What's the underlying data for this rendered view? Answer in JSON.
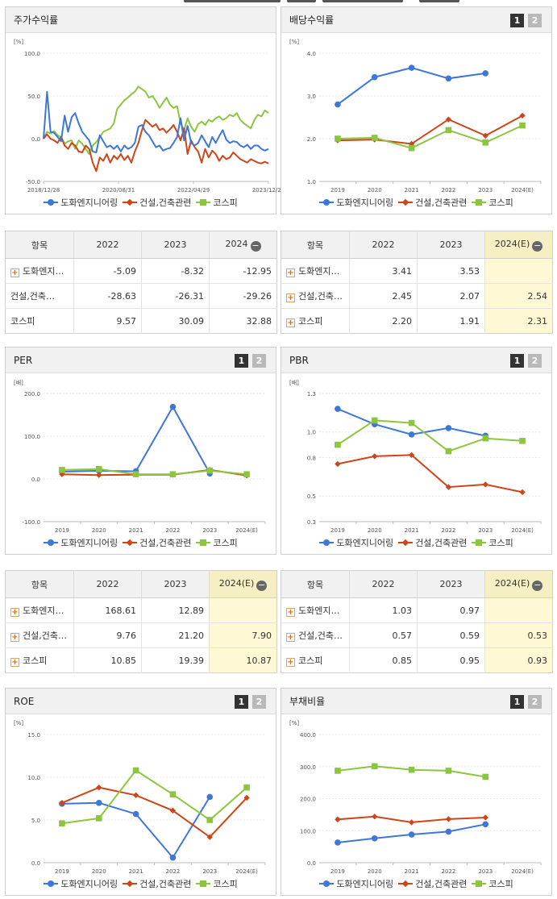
{
  "colors": {
    "blue": "#3d77d9",
    "orange": "#cf4518",
    "green": "#8cc63e"
  },
  "legend": [
    "도화엔지니어링",
    "건설,건축관련",
    "코스피"
  ],
  "buttons": {
    "one": "1",
    "two": "2"
  },
  "panels": [
    {
      "id": "stock",
      "title": "주가수익률",
      "unit": "[%]",
      "chart_data": {
        "type": "line",
        "title": "주가수익률",
        "ylim": [
          -50,
          100
        ],
        "yticks": [
          "100.0",
          "50.0",
          "0.0",
          "-50.0"
        ],
        "xticks": [
          "2018/12/28",
          "2020/08/31",
          "2022/04/29",
          "2023/12/28"
        ],
        "series": [
          {
            "name": "도화엔지니어링",
            "values": [
              0,
              55,
              8,
              7,
              2,
              -3,
              27,
              8,
              25,
              30,
              18,
              8,
              3,
              -2,
              -15,
              -16,
              4,
              -3,
              -10,
              -8,
              -12,
              -8,
              -15,
              -8,
              -12,
              -10,
              -5,
              14,
              16,
              8,
              4,
              -3,
              -10,
              -8,
              -14,
              -12,
              -11,
              -5,
              2,
              24,
              -2,
              15,
              -5,
              -8,
              -5,
              4,
              -3,
              -10,
              2,
              -5,
              3,
              10,
              -1,
              -5,
              -3,
              -4,
              -8,
              -10,
              -7,
              -12,
              -8,
              -8,
              -12,
              -14,
              -12
            ]
          },
          {
            "name": "건설,건축관련",
            "values": [
              0,
              5,
              0,
              -2,
              -5,
              2,
              -8,
              -12,
              -5,
              -8,
              -15,
              -16,
              -8,
              -12,
              -28,
              -38,
              -22,
              -26,
              -18,
              -28,
              -20,
              -24,
              -18,
              -25,
              -20,
              -28,
              -15,
              -5,
              10,
              22,
              18,
              14,
              17,
              10,
              12,
              7,
              11,
              16,
              8,
              -2,
              12,
              -18,
              -2,
              -10,
              -15,
              -28,
              -12,
              -22,
              -14,
              -18,
              -26,
              -20,
              -24,
              -22,
              -16,
              -20,
              -24,
              -26,
              -28,
              -24,
              -26,
              -28,
              -29,
              -27,
              -29
            ]
          },
          {
            "name": "코스피",
            "values": [
              0,
              8,
              6,
              9,
              4,
              2,
              -6,
              -3,
              -2,
              -12,
              -2,
              -6,
              -12,
              -18,
              -8,
              -4,
              2,
              8,
              10,
              12,
              18,
              35,
              40,
              45,
              48,
              52,
              55,
              61,
              58,
              55,
              48,
              50,
              44,
              36,
              42,
              48,
              40,
              36,
              38,
              18,
              10,
              24,
              14,
              8,
              17,
              20,
              16,
              22,
              20,
              24,
              26,
              22,
              24,
              28,
              26,
              30,
              22,
              18,
              15,
              12,
              22,
              28,
              26,
              33,
              30
            ]
          }
        ]
      }
    },
    {
      "id": "dividend",
      "title": "배당수익률",
      "unit": "[%]",
      "chart_data": {
        "type": "line",
        "title": "배당수익률",
        "ylim": [
          1.0,
          4.0
        ],
        "yticks": [
          "4.0",
          "3.0",
          "2.0",
          "1.0"
        ],
        "categories": [
          "2019",
          "2020",
          "2021",
          "2022",
          "2023",
          "2024(E)"
        ],
        "series": [
          {
            "name": "도화엔지니어링",
            "values": [
              2.8,
              3.44,
              3.66,
              3.41,
              3.53,
              null
            ]
          },
          {
            "name": "건설,건축관련",
            "values": [
              1.96,
              1.98,
              1.88,
              2.45,
              2.07,
              2.54
            ]
          },
          {
            "name": "코스피",
            "values": [
              2.0,
              2.02,
              1.78,
              2.2,
              1.91,
              2.31
            ]
          }
        ]
      }
    },
    {
      "id": "per",
      "title": "PER",
      "unit": "[배]",
      "chart_data": {
        "type": "line",
        "title": "PER",
        "ylim": [
          -100,
          200
        ],
        "yticks": [
          "200.0",
          "100.0",
          "0.0",
          "-100.0"
        ],
        "categories": [
          "2019",
          "2020",
          "2021",
          "2022",
          "2023",
          "2024(E)"
        ],
        "series": [
          {
            "name": "도화엔지니어링",
            "values": [
              17,
              19,
              18,
              168.61,
              12.89,
              null
            ]
          },
          {
            "name": "건설,건축관련",
            "values": [
              11,
              9,
              10,
              9.76,
              21.2,
              7.9
            ]
          },
          {
            "name": "코스피",
            "values": [
              21,
              23,
              11,
              10.85,
              19.39,
              10.87
            ]
          }
        ]
      }
    },
    {
      "id": "pbr",
      "title": "PBR",
      "unit": "[배]",
      "chart_data": {
        "type": "line",
        "title": "PBR",
        "ylim": [
          0.3,
          1.3
        ],
        "yticks": [
          "1.3",
          "1.0",
          "0.8",
          "0.5",
          "0.3"
        ],
        "categories": [
          "2019",
          "2020",
          "2021",
          "2022",
          "2023",
          "2024(E)"
        ],
        "series": [
          {
            "name": "도화엔지니어링",
            "values": [
              1.18,
              1.06,
              0.98,
              1.03,
              0.97,
              null
            ]
          },
          {
            "name": "건설,건축관련",
            "values": [
              0.75,
              0.81,
              0.82,
              0.57,
              0.59,
              0.53
            ]
          },
          {
            "name": "코스피",
            "values": [
              0.9,
              1.09,
              1.07,
              0.85,
              0.95,
              0.93
            ]
          }
        ]
      }
    },
    {
      "id": "roe",
      "title": "ROE",
      "unit": "[%]",
      "chart_data": {
        "type": "line",
        "title": "ROE",
        "ylim": [
          0,
          15
        ],
        "yticks": [
          "15.0",
          "10.0",
          "5.0",
          "0.0"
        ],
        "categories": [
          "2019",
          "2020",
          "2021",
          "2022",
          "2023",
          "2024(E)"
        ],
        "series": [
          {
            "name": "도화엔지니어링",
            "values": [
              6.9,
              7.0,
              5.7,
              0.6,
              7.7,
              null
            ]
          },
          {
            "name": "건설,건축관련",
            "values": [
              7.0,
              8.8,
              7.9,
              6.1,
              3.0,
              7.6
            ]
          },
          {
            "name": "코스피",
            "values": [
              4.6,
              5.2,
              10.8,
              8.0,
              5.0,
              8.8
            ]
          }
        ]
      }
    },
    {
      "id": "debt",
      "title": "부채비율",
      "unit": "[%]",
      "chart_data": {
        "type": "line",
        "title": "부채비율",
        "ylim": [
          0,
          400
        ],
        "yticks": [
          "400.0",
          "300.0",
          "200.0",
          "100.0",
          "0.0"
        ],
        "categories": [
          "2019",
          "2020",
          "2021",
          "2022",
          "2023",
          "2024(E)"
        ],
        "series": [
          {
            "name": "도화엔지니어링",
            "values": [
              63,
              76,
              88,
              97,
              120,
              null
            ]
          },
          {
            "name": "건설,건축관련",
            "values": [
              135,
              144,
              126,
              136,
              141,
              null
            ]
          },
          {
            "name": "코스피",
            "values": [
              287,
              301,
              290,
              287,
              268,
              null
            ]
          }
        ]
      }
    }
  ],
  "tables": [
    {
      "id": "stock",
      "headers": [
        "항목",
        "2022",
        "2023",
        "2024"
      ],
      "highlight_last": false,
      "rows": [
        {
          "name": "도화엔지니어링",
          "plus": true,
          "values": [
            "-5.09",
            "-8.32",
            "-12.95"
          ]
        },
        {
          "name": "건설,건축관련",
          "plus": false,
          "values": [
            "-28.63",
            "-26.31",
            "-29.26"
          ]
        },
        {
          "name": "코스피",
          "plus": false,
          "values": [
            "9.57",
            "30.09",
            "32.88"
          ]
        }
      ]
    },
    {
      "id": "dividend",
      "headers": [
        "항목",
        "2022",
        "2023",
        "2024(E)"
      ],
      "highlight_last": true,
      "rows": [
        {
          "name": "도화엔지니어링",
          "plus": true,
          "values": [
            "3.41",
            "3.53",
            ""
          ]
        },
        {
          "name": "건설,건축관련",
          "plus": true,
          "values": [
            "2.45",
            "2.07",
            "2.54"
          ]
        },
        {
          "name": "코스피",
          "plus": true,
          "values": [
            "2.20",
            "1.91",
            "2.31"
          ]
        }
      ]
    },
    {
      "id": "per",
      "headers": [
        "항목",
        "2022",
        "2023",
        "2024(E)"
      ],
      "highlight_last": true,
      "rows": [
        {
          "name": "도화엔지니어링",
          "plus": true,
          "values": [
            "168.61",
            "12.89",
            ""
          ]
        },
        {
          "name": "건설,건축관련",
          "plus": true,
          "values": [
            "9.76",
            "21.20",
            "7.90"
          ]
        },
        {
          "name": "코스피",
          "plus": true,
          "values": [
            "10.85",
            "19.39",
            "10.87"
          ]
        }
      ]
    },
    {
      "id": "pbr",
      "headers": [
        "항목",
        "2022",
        "2023",
        "2024(E)"
      ],
      "highlight_last": true,
      "rows": [
        {
          "name": "도화엔지니어링",
          "plus": true,
          "values": [
            "1.03",
            "0.97",
            ""
          ]
        },
        {
          "name": "건설,건축관련",
          "plus": true,
          "values": [
            "0.57",
            "0.59",
            "0.53"
          ]
        },
        {
          "name": "코스피",
          "plus": true,
          "values": [
            "0.85",
            "0.95",
            "0.93"
          ]
        }
      ]
    }
  ]
}
